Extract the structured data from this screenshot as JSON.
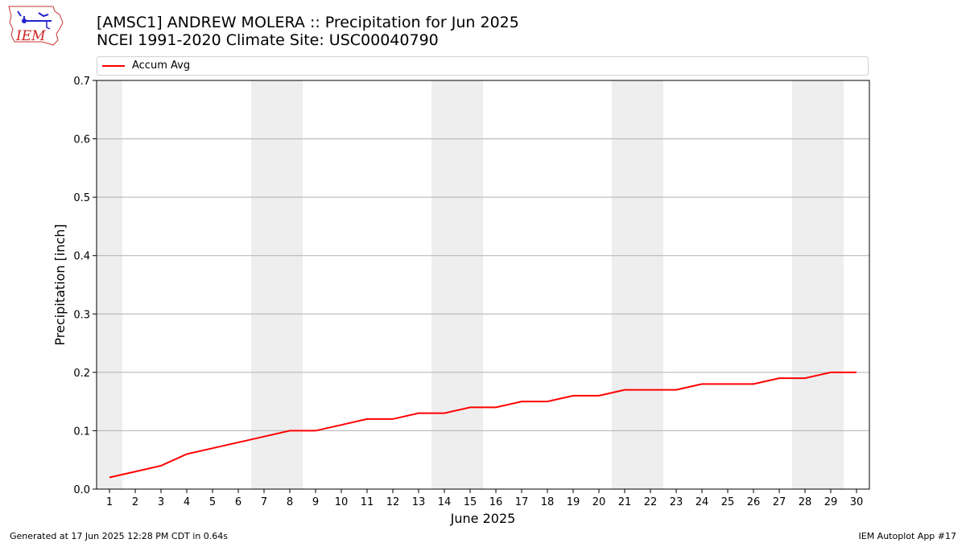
{
  "header": {
    "title_line1": "[AMSC1] ANDREW MOLERA :: Precipitation for Jun 2025",
    "title_line2": "NCEI 1991-2020 Climate Site: USC00040790"
  },
  "logo": {
    "text": "IEM"
  },
  "footer": {
    "left": "Generated at 17 Jun 2025 12:28 PM CDT in 0.64s",
    "right": "IEM Autoplot App #17"
  },
  "colors": {
    "line": "#ff0000",
    "weekend_band": "#eeeeee",
    "grid": "#b0b0b0"
  },
  "chart_data": {
    "type": "line",
    "xlabel": "June 2025",
    "ylabel": "Precipitation [inch]",
    "ylim": [
      0.0,
      0.7
    ],
    "yticks": [
      "0.0",
      "0.1",
      "0.2",
      "0.3",
      "0.4",
      "0.5",
      "0.6",
      "0.7"
    ],
    "x": [
      1,
      2,
      3,
      4,
      5,
      6,
      7,
      8,
      9,
      10,
      11,
      12,
      13,
      14,
      15,
      16,
      17,
      18,
      19,
      20,
      21,
      22,
      23,
      24,
      25,
      26,
      27,
      28,
      29,
      30
    ],
    "series": [
      {
        "name": "Accum Avg",
        "values": [
          0.02,
          0.03,
          0.04,
          0.06,
          0.07,
          0.08,
          0.09,
          0.1,
          0.1,
          0.11,
          0.12,
          0.12,
          0.13,
          0.13,
          0.14,
          0.14,
          0.15,
          0.15,
          0.16,
          0.16,
          0.17,
          0.17,
          0.17,
          0.18,
          0.18,
          0.18,
          0.19,
          0.19,
          0.2,
          0.2
        ]
      }
    ],
    "weekend_days": [
      1,
      7,
      8,
      14,
      15,
      21,
      22,
      28,
      29
    ],
    "grid": "horizontal",
    "legend_position": "top"
  }
}
